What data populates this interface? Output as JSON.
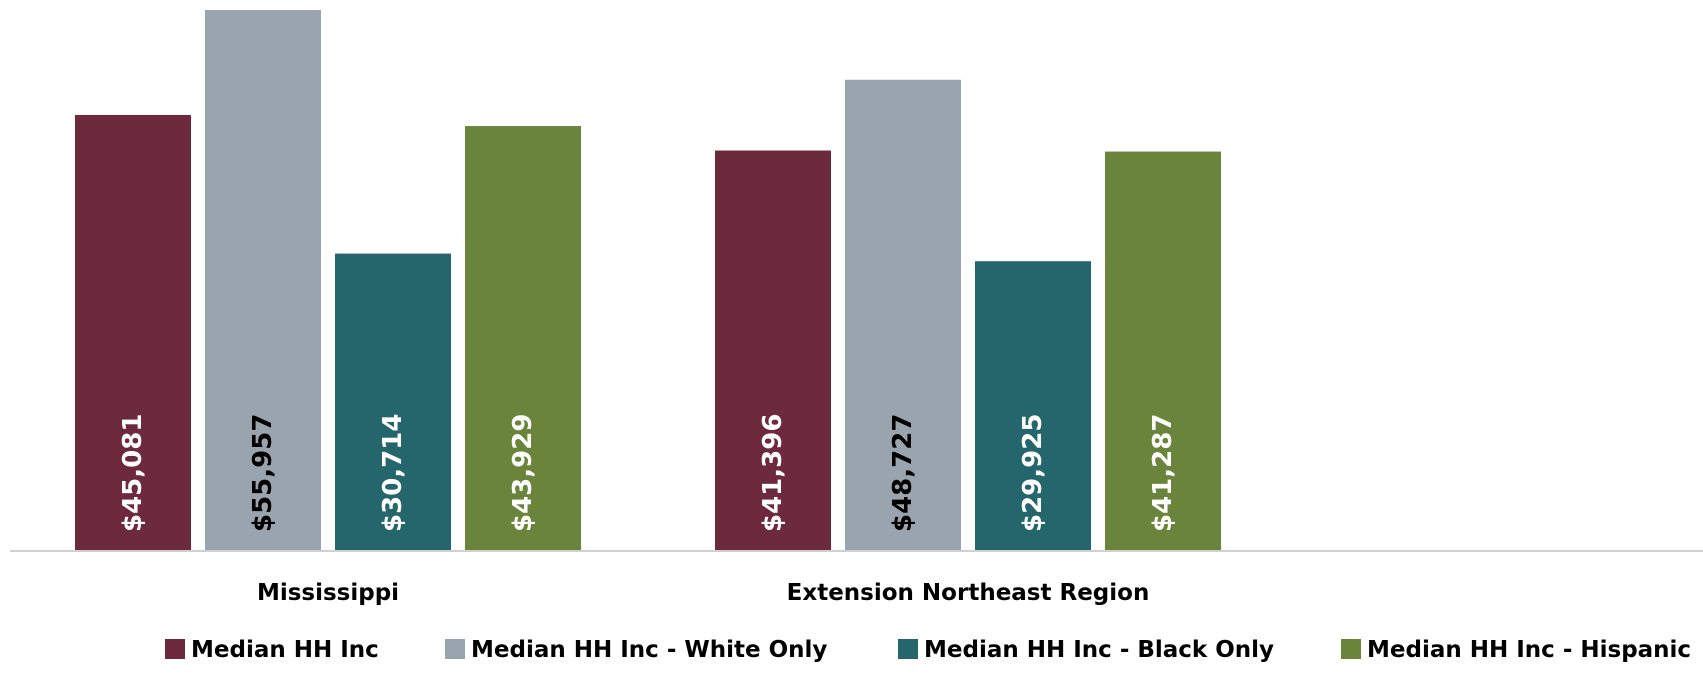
{
  "chart_data": {
    "type": "bar",
    "title": "",
    "xlabel": "",
    "ylabel": "",
    "categories": [
      "Mississippi",
      "Extension Northeast Region"
    ],
    "ylim": [
      0,
      57000
    ],
    "grid": false,
    "legend_position": "bottom",
    "series": [
      {
        "name": "Median HH Inc",
        "values": [
          45081,
          41396
        ],
        "labels": [
          "$45,081",
          "$41,396"
        ],
        "color": "#6d2a3c",
        "label_color": "#ffffff"
      },
      {
        "name": "Median HH Inc - White Only",
        "values": [
          55957,
          48727
        ],
        "labels": [
          "$55,957",
          "$48,727"
        ],
        "color": "#9aa4ae",
        "label_color": "#000000"
      },
      {
        "name": "Median HH Inc - Black Only",
        "values": [
          30714,
          29925
        ],
        "labels": [
          "$30,714",
          "$29,925"
        ],
        "color": "#24666c",
        "label_color": "#ffffff"
      },
      {
        "name": "Median HH Inc - Hispanic",
        "values": [
          43929,
          41287
        ],
        "labels": [
          "$43,929",
          "$41,287"
        ],
        "color": "#6a843c",
        "label_color": "#ffffff"
      }
    ],
    "axis_color": "#d0d0d0"
  }
}
